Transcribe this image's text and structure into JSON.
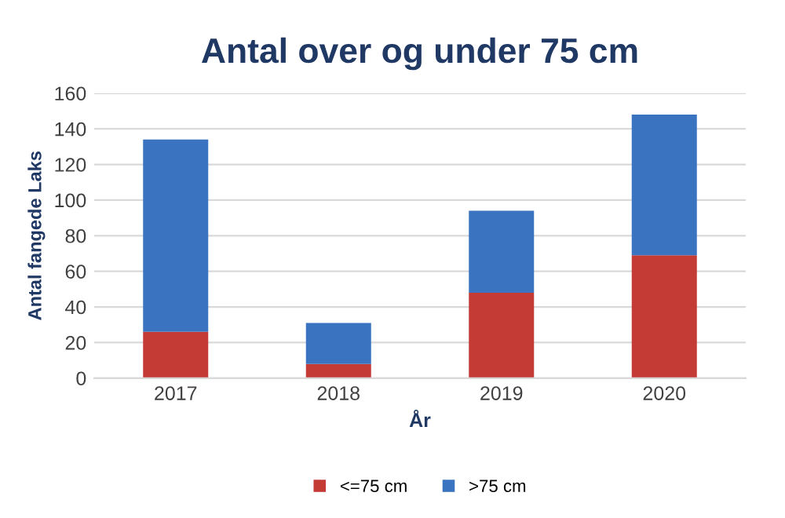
{
  "chart_data": {
    "type": "bar",
    "stacked": true,
    "title": "Antal over og under 75 cm",
    "xlabel": "År",
    "ylabel": "Antal fangede Laks",
    "categories": [
      "2017",
      "2018",
      "2019",
      "2020"
    ],
    "series": [
      {
        "name": "<=75 cm",
        "color": "#c43b36",
        "values": [
          26,
          8,
          48,
          69
        ]
      },
      {
        "name": ">75 cm",
        "color": "#3a74c0",
        "values": [
          108,
          23,
          46,
          79
        ]
      }
    ],
    "ylim": [
      0,
      160
    ],
    "yticks": [
      0,
      20,
      40,
      60,
      80,
      100,
      120,
      140,
      160
    ],
    "grid": "y",
    "legend": "bottom"
  }
}
